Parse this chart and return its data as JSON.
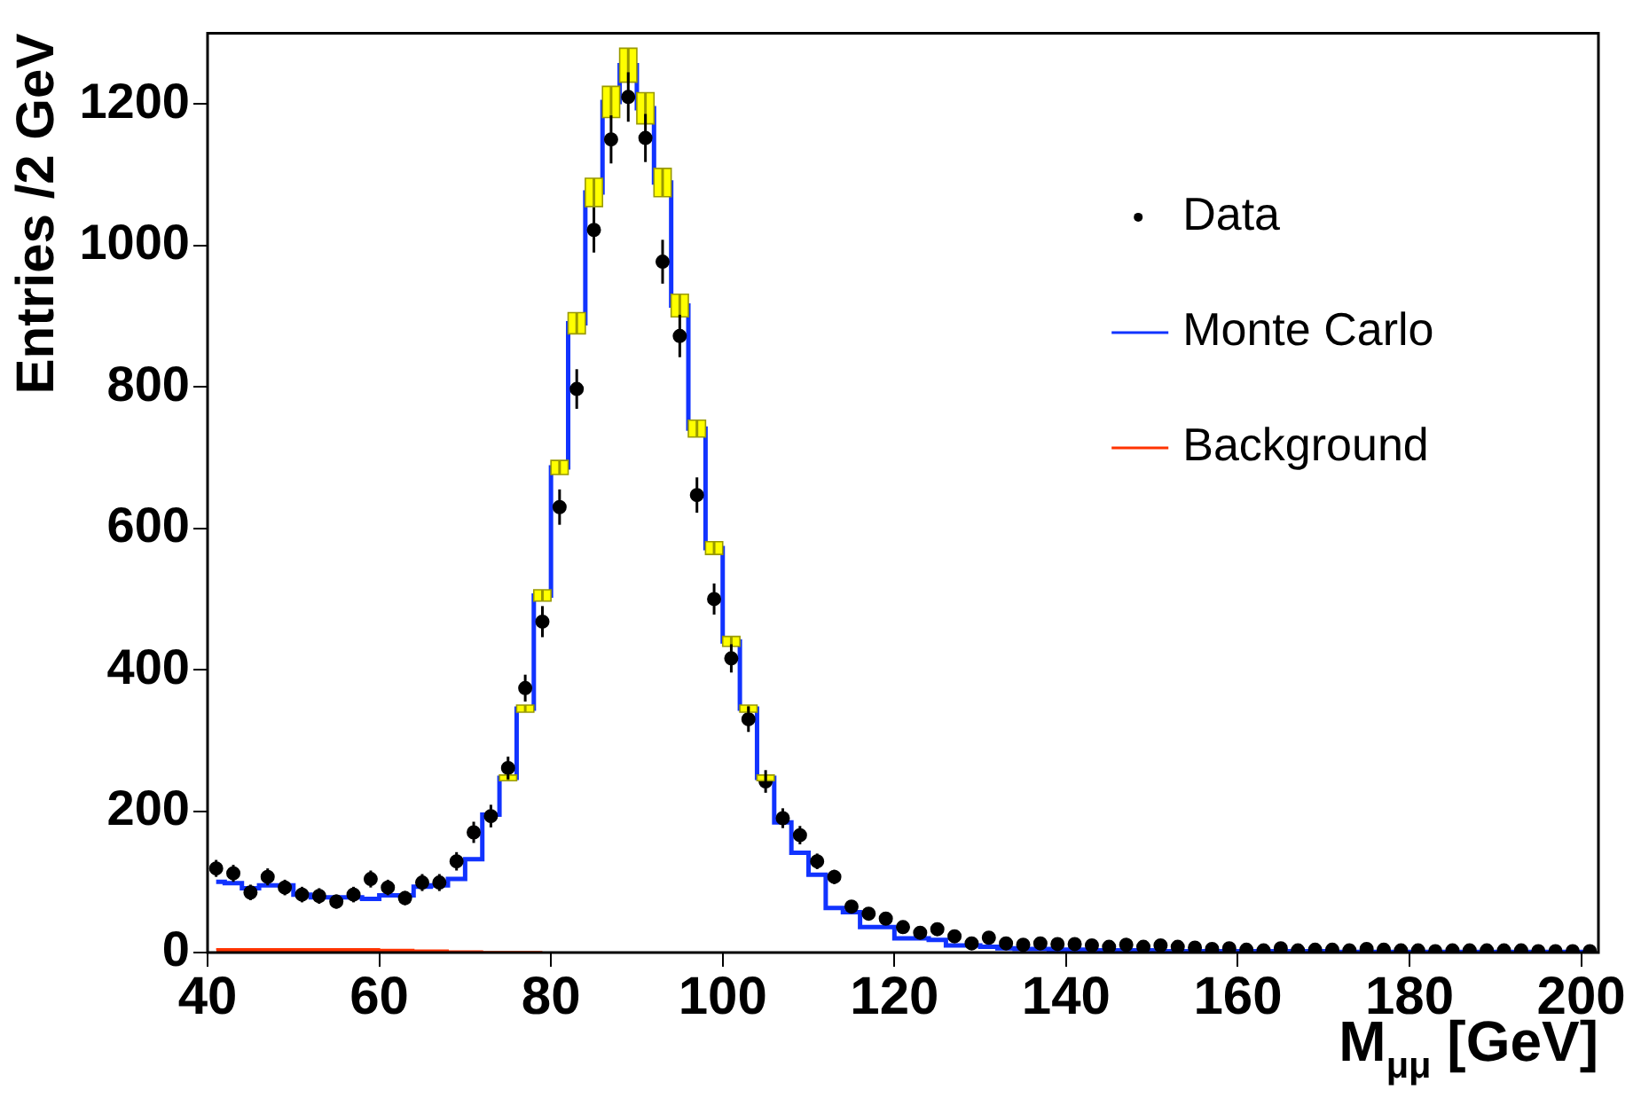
{
  "chart_data": {
    "type": "step",
    "xlabel": "M$_{μμ}$ [GeV]",
    "ylabel": "Entries /2 GeV",
    "x": [
      41,
      43,
      45,
      47,
      49,
      51,
      53,
      55,
      57,
      59,
      61,
      63,
      65,
      67,
      69,
      71,
      73,
      75,
      77,
      79,
      81,
      83,
      85,
      87,
      89,
      91,
      93,
      95,
      97,
      99,
      101,
      103,
      105,
      107,
      109,
      111,
      113,
      115,
      117,
      119,
      121,
      123,
      125,
      127,
      129,
      131,
      133,
      135,
      137,
      139,
      141,
      143,
      145,
      147,
      149,
      151,
      153,
      155,
      157,
      159,
      161,
      163,
      165,
      167,
      169,
      171,
      173,
      175,
      177,
      179,
      181,
      183,
      185,
      187,
      189,
      191,
      193,
      195,
      197,
      199,
      201
    ],
    "xlim": [
      40,
      202
    ],
    "xticks": [
      40,
      60,
      80,
      100,
      120,
      140,
      160,
      180,
      200
    ],
    "ylim": [
      0,
      1300
    ],
    "yticks": [
      0,
      200,
      400,
      600,
      800,
      1000,
      1200
    ],
    "legend": "right",
    "series": [
      {
        "name": "Background",
        "type": "area",
        "color": "#ff3300",
        "values": [
          5,
          5,
          5,
          5,
          5,
          5,
          5,
          5,
          5,
          5,
          4,
          4,
          3,
          3,
          2,
          2,
          1,
          1,
          1,
          1,
          null,
          null,
          null,
          null,
          null,
          null,
          null,
          null,
          null,
          null,
          null,
          null,
          null,
          null,
          null,
          null,
          null,
          null,
          null,
          null,
          null,
          null,
          null,
          null,
          null,
          null,
          null,
          null,
          null,
          null,
          null,
          null,
          null,
          null,
          null,
          null,
          null,
          null,
          null,
          null,
          null,
          null,
          null,
          null,
          null,
          null,
          null,
          null,
          null,
          null,
          null,
          null,
          null,
          null,
          null,
          null,
          null,
          null,
          null,
          null,
          null
        ]
      },
      {
        "name": "Monte Carlo",
        "color": "#1133ff",
        "values": [
          100,
          98,
          91,
          95,
          95,
          82,
          78,
          78,
          78,
          76,
          81,
          81,
          93,
          95,
          104,
          132,
          195,
          247,
          345,
          505,
          686,
          890,
          1075,
          1203,
          1255,
          1194,
          1089,
          915,
          741,
          572,
          440,
          345,
          247,
          184,
          141,
          110,
          63,
          57,
          36,
          36,
          20,
          20,
          18,
          10,
          10,
          8,
          6,
          5,
          5,
          4,
          4,
          3,
          3,
          3,
          3,
          2,
          2,
          2,
          2,
          2,
          2,
          2,
          2,
          2,
          2,
          1,
          1,
          1,
          1,
          1,
          1,
          1,
          1,
          1,
          1,
          1,
          1,
          1,
          1,
          1,
          1
        ],
        "errors": [
          null,
          null,
          null,
          null,
          null,
          null,
          null,
          null,
          null,
          null,
          null,
          null,
          null,
          null,
          null,
          null,
          null,
          4,
          5,
          8,
          10,
          15,
          20,
          22,
          24,
          22,
          20,
          16,
          12,
          9,
          7,
          5,
          4,
          null,
          null,
          null,
          null,
          null,
          null,
          null,
          null,
          null,
          null,
          null,
          null,
          null,
          null,
          null,
          null,
          null,
          null,
          null,
          null,
          null,
          null,
          null,
          null,
          null,
          null,
          null,
          null,
          null,
          null,
          null,
          null,
          null,
          null,
          null,
          null,
          null,
          null,
          null,
          null,
          null,
          null,
          null,
          null,
          null,
          null,
          null,
          null
        ]
      },
      {
        "name": "Data",
        "type": "scatter",
        "color": "#000000",
        "marker": "circle",
        "values": [
          119,
          112,
          85,
          107,
          92,
          82,
          80,
          72,
          82,
          104,
          92,
          77,
          99,
          99,
          129,
          170,
          193,
          261,
          374,
          468,
          630,
          797,
          1022,
          1150,
          1210,
          1152,
          977,
          872,
          647,
          500,
          416,
          330,
          242,
          190,
          166,
          129,
          107,
          65,
          55,
          48,
          36,
          28,
          33,
          23,
          13,
          21,
          13,
          11,
          13,
          12,
          12,
          10,
          8,
          11,
          8,
          10,
          8,
          7,
          5,
          6,
          4,
          3,
          6,
          3,
          4,
          4,
          3,
          5,
          4,
          3,
          3,
          2,
          3,
          3,
          3,
          3,
          3,
          2,
          2,
          2,
          2
        ],
        "errors": [
          12,
          12,
          11,
          12,
          11,
          11,
          11,
          10,
          11,
          12,
          11,
          10,
          12,
          12,
          13,
          15,
          16,
          16,
          19,
          22,
          25,
          28,
          32,
          34,
          35,
          34,
          31,
          30,
          25,
          22,
          20,
          18,
          16,
          14,
          13,
          11,
          10,
          8,
          7,
          7,
          6,
          5,
          6,
          5,
          4,
          5,
          4,
          3,
          null,
          null,
          null,
          null,
          null,
          null,
          null,
          null,
          null,
          null,
          null,
          null,
          null,
          null,
          null,
          null,
          null,
          null,
          null,
          null,
          null,
          null,
          null,
          null,
          null,
          null,
          null,
          null,
          null,
          null,
          null,
          null,
          null
        ]
      }
    ]
  }
}
